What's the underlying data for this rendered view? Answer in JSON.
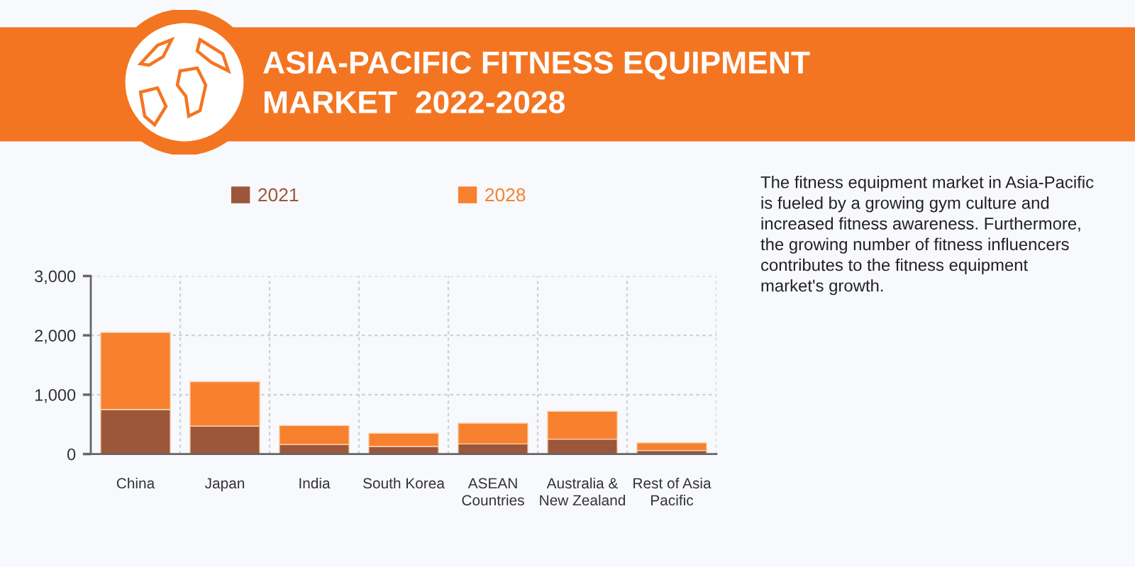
{
  "chart_data": {
    "type": "bar",
    "title": "ASIA-PACIFIC FITNESS EQUIPMENT\nMARKET  2022-2028",
    "categories": [
      "China",
      "Japan",
      "India",
      "South Korea",
      "ASEAN\nCountries",
      "Australia &\nNew Zealand",
      "Rest of Asia\nPacific"
    ],
    "series": [
      {
        "name": "2021",
        "color": "#9c573a",
        "values": [
          750,
          470,
          160,
          130,
          170,
          250,
          60
        ]
      },
      {
        "name": "2028",
        "color": "#f7812f",
        "values": [
          1300,
          750,
          320,
          220,
          350,
          470,
          130
        ]
      }
    ],
    "stacked": true,
    "ylim": [
      0,
      3000
    ],
    "yticks": [
      0,
      {
        "value": 1000,
        "label": "1,000"
      },
      {
        "value": 2000,
        "label": "2,000"
      },
      {
        "value": 3000,
        "label": "3,000"
      }
    ],
    "grid": true,
    "legend": "top",
    "annotations": [
      "The fitness equipment market in Asia-Pacific\nis fueled by a growing gym culture and\nincreased fitness awareness. Furthermore,\nthe growing number of fitness influencers\ncontributes to the fitness equipment\nmarket's growth."
    ]
  }
}
